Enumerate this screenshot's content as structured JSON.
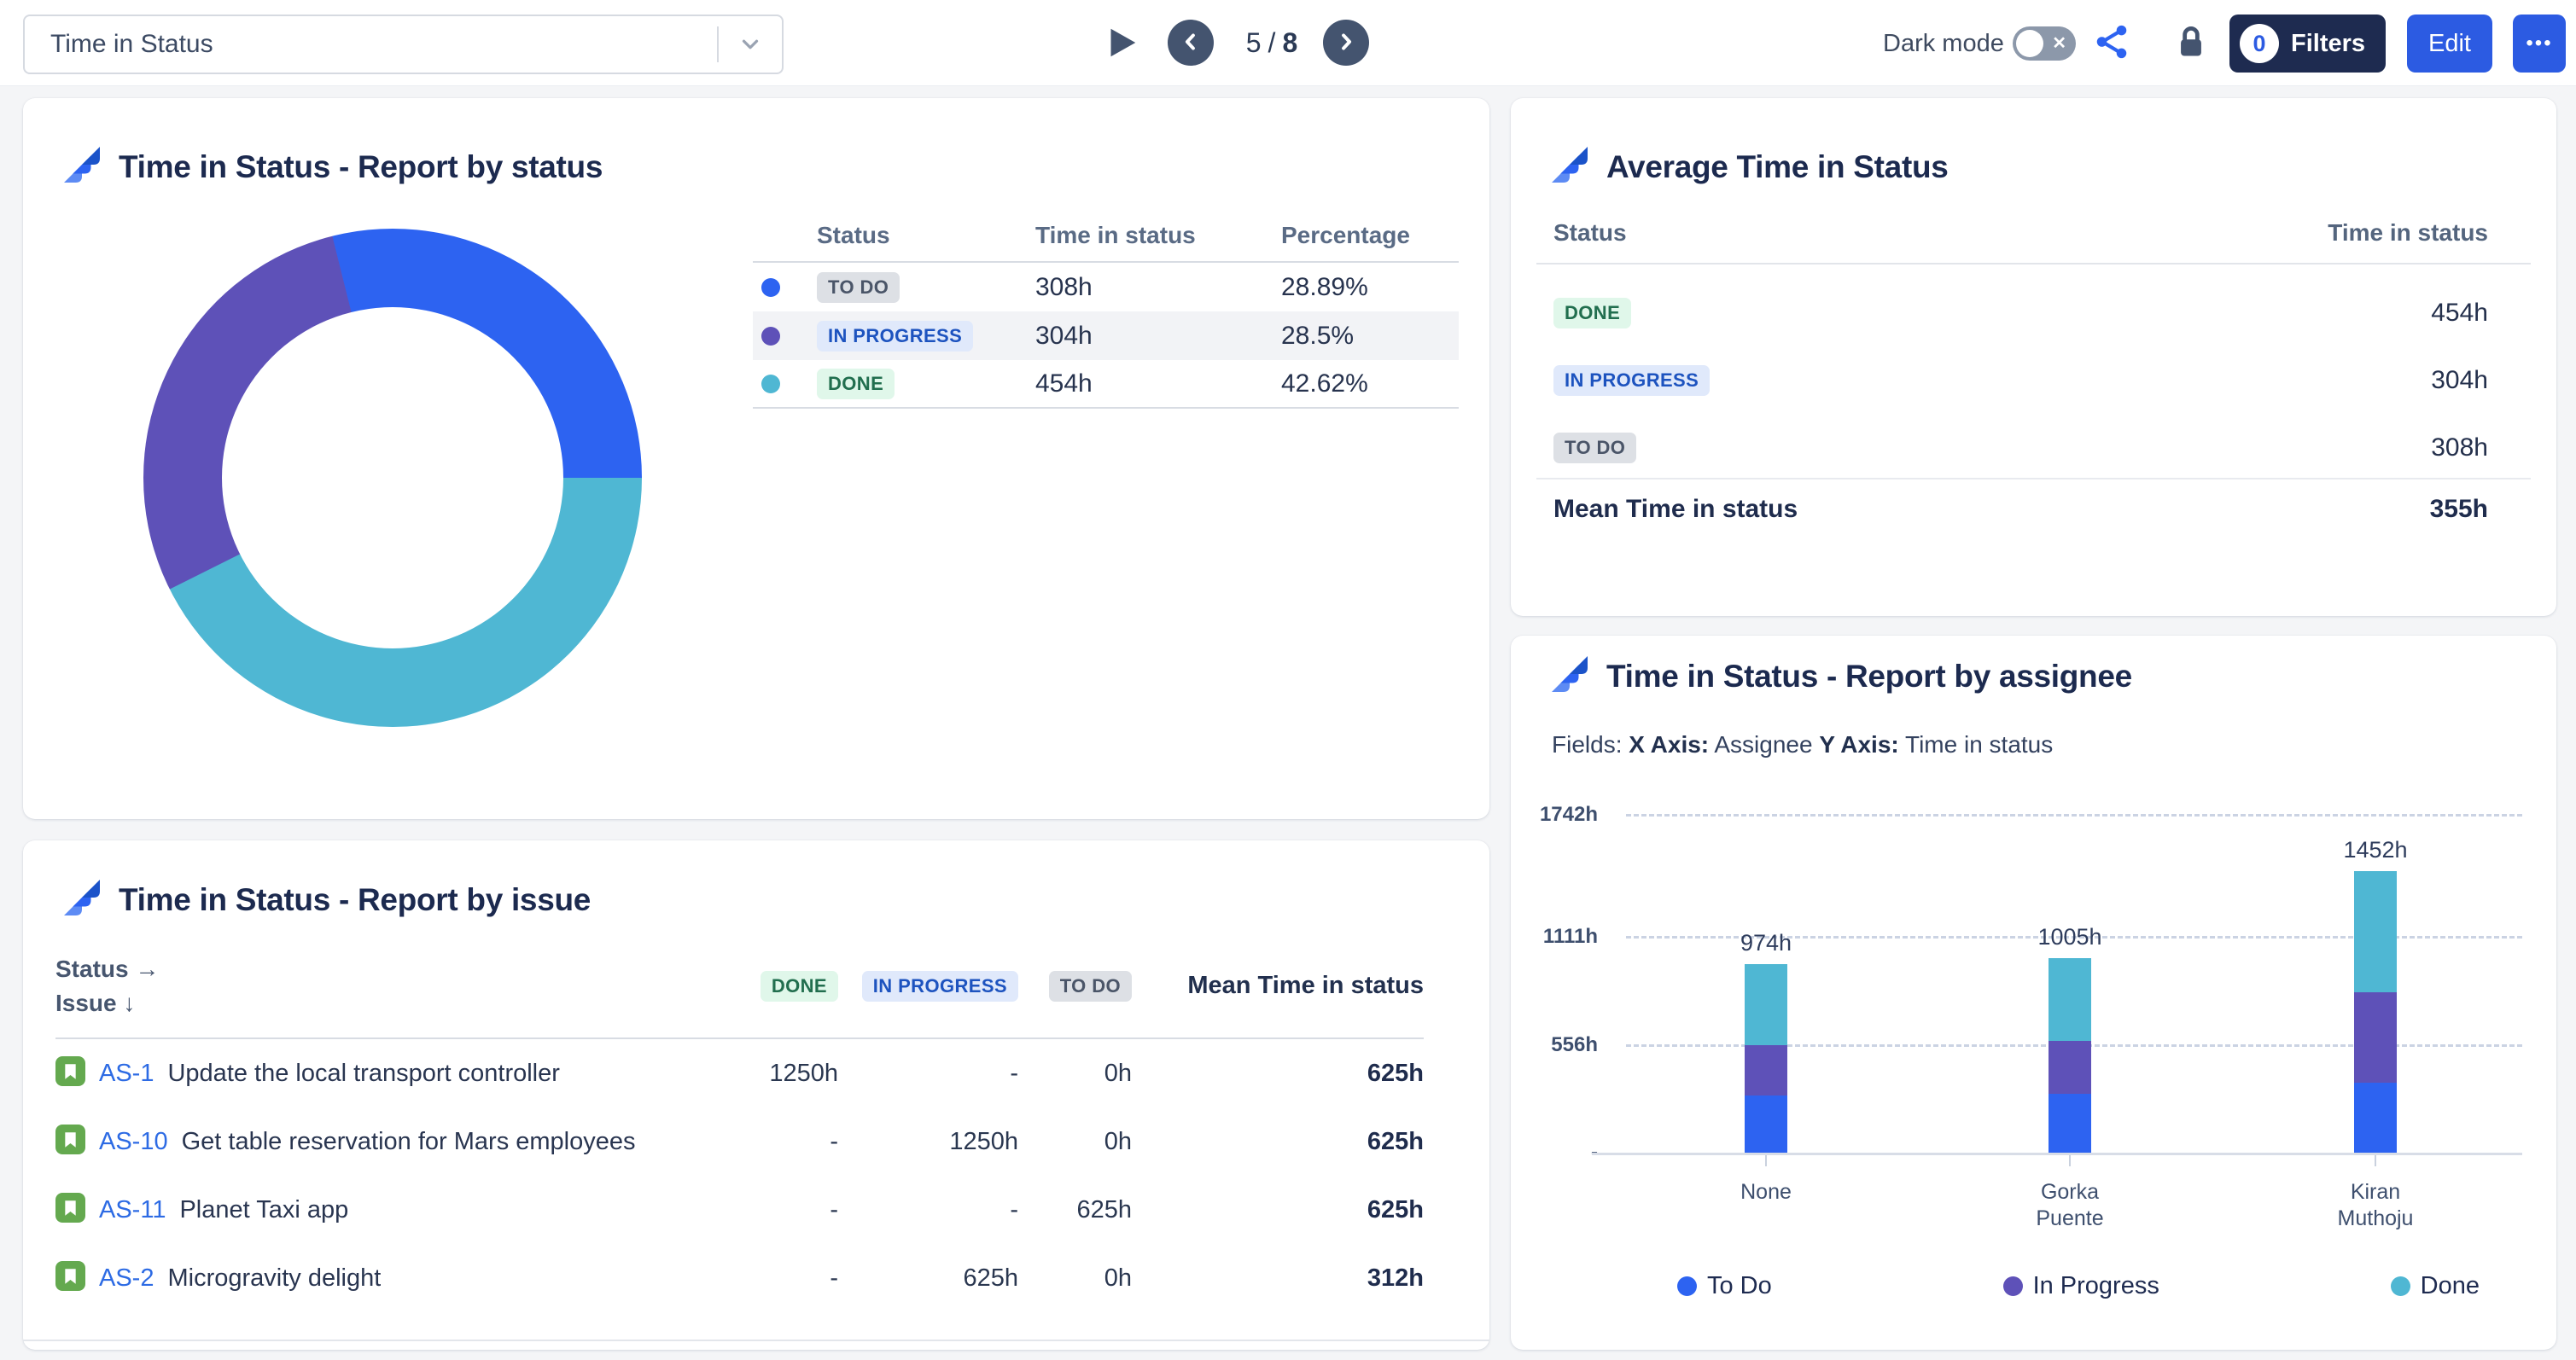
{
  "toolbar": {
    "report_selector_value": "Time in Status",
    "page_current": "5",
    "page_separator": "/",
    "page_total": "8",
    "dark_mode_label": "Dark mode",
    "filters_count": "0",
    "filters_label": "Filters",
    "edit_label": "Edit",
    "more_label": "•••"
  },
  "panel_by_status": {
    "title": "Time in Status - Report by status",
    "headers": {
      "status": "Status",
      "time": "Time in status",
      "pct": "Percentage"
    },
    "rows": [
      {
        "label": "TO DO",
        "time": "308h",
        "pct": "28.89%"
      },
      {
        "label": "IN PROGRESS",
        "time": "304h",
        "pct": "28.5%"
      },
      {
        "label": "DONE",
        "time": "454h",
        "pct": "42.62%"
      }
    ]
  },
  "panel_average": {
    "title": "Average Time in Status",
    "headers": {
      "status": "Status",
      "time": "Time in status"
    },
    "rows": [
      {
        "label": "DONE",
        "time": "454h"
      },
      {
        "label": "IN PROGRESS",
        "time": "304h"
      },
      {
        "label": "TO DO",
        "time": "308h"
      }
    ],
    "mean_label": "Mean Time in status",
    "mean_value": "355h"
  },
  "panel_by_issue": {
    "title": "Time in Status - Report by issue",
    "row_axis_label": "Status",
    "row_axis_arrow": "→",
    "col_axis_label": "Issue",
    "col_axis_arrow": "↓",
    "columns": {
      "done": "DONE",
      "in_progress": "IN PROGRESS",
      "todo": "TO DO",
      "mean": "Mean Time in status"
    },
    "rows": [
      {
        "key": "AS-1",
        "summary": "Update the local transport controller",
        "done": "1250h",
        "in_progress": "-",
        "todo": "0h",
        "mean": "625h"
      },
      {
        "key": "AS-10",
        "summary": "Get table reservation for Mars employees",
        "done": "-",
        "in_progress": "1250h",
        "todo": "0h",
        "mean": "625h"
      },
      {
        "key": "AS-11",
        "summary": "Planet Taxi app",
        "done": "-",
        "in_progress": "-",
        "todo": "625h",
        "mean": "625h"
      },
      {
        "key": "AS-2",
        "summary": "Microgravity delight",
        "done": "-",
        "in_progress": "625h",
        "todo": "0h",
        "mean": "312h"
      }
    ]
  },
  "panel_by_assignee": {
    "title": "Time in Status - Report by assignee",
    "fields_label": "Fields:",
    "x_axis_label": "X Axis:",
    "x_axis_value": "Assignee",
    "y_axis_label": "Y Axis:",
    "y_axis_value": "Time in status"
  },
  "chart_data": [
    {
      "type": "pie",
      "variant": "donut",
      "title": "Time in Status - Report by status",
      "start_angle_deg": -14,
      "segments": [
        {
          "label": "TO DO",
          "value_hours": 308,
          "percent": 28.89,
          "color": "#2D63F1"
        },
        {
          "label": "DONE",
          "value_hours": 454,
          "percent": 42.62,
          "color": "#4FB7D3"
        },
        {
          "label": "IN PROGRESS",
          "value_hours": 304,
          "percent": 28.5,
          "color": "#5E51B8"
        }
      ]
    },
    {
      "type": "bar",
      "stacked": true,
      "title": "Time in Status - Report by assignee",
      "xlabel": "Assignee",
      "ylabel": "Time in status",
      "categories": [
        "None",
        "Gorka Puente",
        "Kiran Muthoju"
      ],
      "totals": [
        974,
        1005,
        1452
      ],
      "totals_labels": [
        "974h",
        "1005h",
        "1452h"
      ],
      "series": [
        {
          "name": "To Do",
          "color": "#2D63F1",
          "values": [
            296,
            305,
            359
          ]
        },
        {
          "name": "In Progress",
          "color": "#5E51B8",
          "values": [
            260,
            270,
            470
          ]
        },
        {
          "name": "Done",
          "color": "#4FB7D3",
          "values": [
            418,
            430,
            623
          ]
        }
      ],
      "ymax": 1742,
      "yticks": [
        {
          "label": "1742h",
          "value": 1742
        },
        {
          "label": "1111h",
          "value": 1111
        },
        {
          "label": "556h",
          "value": 556
        },
        {
          "label": "-",
          "value": 0
        }
      ],
      "legend": [
        "To Do",
        "In Progress",
        "Done"
      ],
      "legend_position": "bottom",
      "grid": "dashed-horizontal"
    }
  ]
}
